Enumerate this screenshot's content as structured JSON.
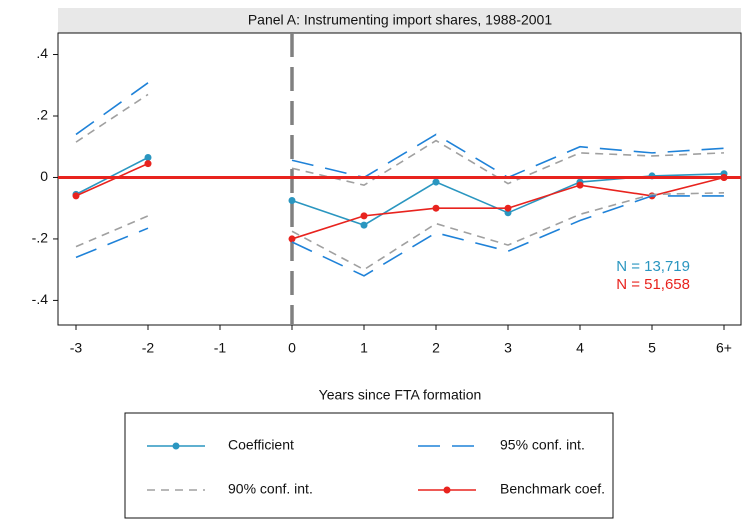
{
  "chart_data": {
    "type": "line",
    "title": "Panel A: Instrumenting import shares, 1988-2001",
    "x_label": "Years since FTA formation",
    "categories": [
      "-3",
      "-2",
      "-1",
      "0",
      "1",
      "2",
      "3",
      "4",
      "5",
      "6+"
    ],
    "ylim": [
      -0.48,
      0.47
    ],
    "yticks": [
      {
        "value": -0.4,
        "label": "-.4"
      },
      {
        "value": -0.2,
        "label": "-.2"
      },
      0,
      {
        "value": 0.2,
        "label": ".2"
      },
      {
        "value": 0.4,
        "label": ".4"
      }
    ],
    "hline": 0,
    "hline_color": "#e8231e",
    "vline": "0",
    "vline_color": "#808080",
    "series": [
      {
        "name": "Coefficient",
        "color": "#2a96c0",
        "dash": "none",
        "marker": true,
        "values": [
          -0.055,
          0.065,
          null,
          -0.075,
          -0.155,
          -0.015,
          -0.115,
          -0.015,
          0.005,
          0.012
        ]
      },
      {
        "name": "95% conf. int.",
        "color": "#1f82d8",
        "dash": "22 12",
        "marker": false,
        "values": [
          0.14,
          0.308,
          null,
          0.056,
          0.0,
          0.14,
          0.0,
          0.1,
          0.08,
          0.095
        ]
      },
      {
        "name": "90% conf. int.",
        "color": "#a0a0a0",
        "dash": "8 6",
        "marker": false,
        "values": [
          0.115,
          0.27,
          null,
          0.03,
          -0.025,
          0.12,
          -0.02,
          0.08,
          0.07,
          0.08
        ]
      },
      {
        "name": "Benchmark coef.",
        "color": "#e8231e",
        "dash": "none",
        "marker": true,
        "values": [
          -0.06,
          0.045,
          null,
          -0.2,
          -0.125,
          -0.1,
          -0.1,
          -0.025,
          -0.06,
          0.0
        ]
      },
      {
        "name": "95% conf. int.",
        "color": "#1f82d8",
        "dash": "22 12",
        "marker": false,
        "in_legend": false,
        "values": [
          -0.26,
          -0.165,
          null,
          -0.21,
          -0.32,
          -0.18,
          -0.24,
          -0.14,
          -0.06,
          -0.06
        ]
      },
      {
        "name": "90% conf. int.",
        "color": "#a0a0a0",
        "dash": "8 6",
        "marker": false,
        "in_legend": false,
        "values": [
          -0.225,
          -0.125,
          null,
          -0.175,
          -0.3,
          -0.15,
          -0.22,
          -0.12,
          -0.055,
          -0.05
        ]
      }
    ],
    "annotations": [
      {
        "text": "N = 13,719",
        "color": "#2a96c0"
      },
      {
        "text": "N = 51,658",
        "color": "#e8231e"
      }
    ]
  }
}
